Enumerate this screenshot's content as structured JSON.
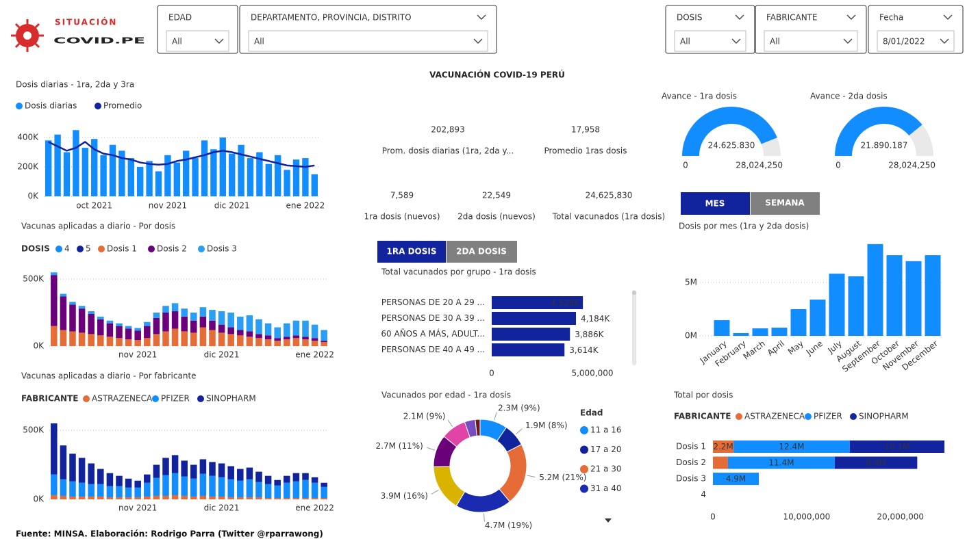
{
  "header": {
    "logo_top": "SITUACIÓN",
    "logo_main": "COVID.PE",
    "title": "VACUNACIÓN COVID-19 PERÚ"
  },
  "filters": [
    {
      "label": "EDAD",
      "value": "All"
    },
    {
      "label": "DEPARTAMENTO, PROVINCIA, DISTRITO",
      "value": "All"
    },
    {
      "label": "DOSIS",
      "value": "All"
    },
    {
      "label": "FABRICANTE",
      "value": "All"
    },
    {
      "label": "Fecha",
      "value": "8/01/2022"
    }
  ],
  "kpis": [
    {
      "value": "202,893",
      "label": "Prom. dosis diarias (1ra, 2da y..."
    },
    {
      "value": "17,958",
      "label": "Promedio 1ras dosis"
    },
    {
      "value": "7,589",
      "label": "1ra dosis (nuevos)"
    },
    {
      "value": "22,549",
      "label": "2da dosis (nuevos)"
    },
    {
      "value": "24,625,830",
      "label": "Total vacunados (1ra dosis)"
    }
  ],
  "toggles": {
    "period": [
      "MES",
      "SEMANA"
    ],
    "dose": [
      "1RA DOSIS",
      "2DA DOSIS"
    ]
  },
  "footer": "Fuente: MINSA. Elaboración: Rodrigo Parra (Twitter @rparrawong)",
  "chart_data": [
    {
      "type": "combo",
      "title": "Dosis diarias - 1ra, 2da y 3ra",
      "categories": [
        null,
        null,
        null,
        null,
        null,
        "oct 2021",
        null,
        null,
        null,
        null,
        null,
        null,
        null,
        "nov 2021",
        null,
        null,
        null,
        null,
        null,
        null,
        "dic 2021",
        null,
        null,
        null,
        null,
        null,
        null,
        null,
        "ene 2022",
        null
      ],
      "series": [
        {
          "name": "Dosis diarias",
          "color": "#118dff",
          "kind": "bar",
          "values": [
            380000,
            420000,
            300000,
            450000,
            330000,
            390000,
            280000,
            350000,
            310000,
            260000,
            200000,
            240000,
            170000,
            280000,
            230000,
            310000,
            260000,
            380000,
            320000,
            400000,
            290000,
            350000,
            260000,
            300000,
            220000,
            280000,
            180000,
            250000,
            260000,
            150000
          ]
        },
        {
          "name": "Promedio",
          "color": "#12239e",
          "kind": "line",
          "values": [
            370000,
            340000,
            310000,
            330000,
            370000,
            320000,
            290000,
            280000,
            260000,
            250000,
            230000,
            220000,
            215000,
            220000,
            240000,
            250000,
            265000,
            280000,
            300000,
            310000,
            300000,
            285000,
            270000,
            255000,
            240000,
            225000,
            210000,
            205000,
            200000,
            210000
          ]
        }
      ],
      "ylim": [
        0,
        500000
      ],
      "yticks": [
        {
          "value": 0,
          "label": "0K"
        },
        {
          "value": 200000,
          "label": "200K"
        },
        {
          "value": 400000,
          "label": "400K"
        }
      ]
    },
    {
      "type": "stacked_bar",
      "title": "Vacunas aplicadas a diario - Por dosis",
      "legend_title": "DOSIS",
      "categories": [
        null,
        null,
        null,
        null,
        null,
        null,
        null,
        null,
        null,
        "nov 2021",
        null,
        null,
        null,
        null,
        null,
        null,
        null,
        null,
        "dic 2021",
        null,
        null,
        null,
        null,
        null,
        null,
        null,
        null,
        null,
        "ene 2022",
        null
      ],
      "series": [
        {
          "name": "4",
          "color": "#118dff",
          "values": [
            0,
            0,
            0,
            0,
            0,
            0,
            0,
            0,
            0,
            0,
            0,
            0,
            0,
            0,
            0,
            0,
            0,
            0,
            0,
            0,
            0,
            0,
            0,
            0,
            0,
            0,
            0,
            0,
            0,
            0
          ]
        },
        {
          "name": "5",
          "color": "#12239e",
          "values": [
            0,
            0,
            0,
            0,
            0,
            0,
            0,
            0,
            0,
            0,
            0,
            0,
            0,
            0,
            0,
            0,
            0,
            0,
            0,
            0,
            0,
            0,
            0,
            0,
            0,
            0,
            0,
            0,
            0,
            0
          ]
        },
        {
          "name": "Dosis 1",
          "color": "#e66c37",
          "values": [
            150000,
            120000,
            110000,
            100000,
            90000,
            80000,
            70000,
            60000,
            50000,
            45000,
            60000,
            90000,
            110000,
            130000,
            110000,
            100000,
            140000,
            120000,
            100000,
            90000,
            80000,
            70000,
            60000,
            50000,
            40000,
            50000,
            60000,
            50000,
            40000,
            30000
          ]
        },
        {
          "name": "Dosis 2",
          "color": "#6b007b",
          "values": [
            380000,
            250000,
            200000,
            180000,
            150000,
            120000,
            100000,
            90000,
            80000,
            70000,
            90000,
            120000,
            140000,
            130000,
            110000,
            90000,
            80000,
            70000,
            60000,
            50000,
            40000,
            40000,
            30000,
            30000,
            20000,
            20000,
            20000,
            20000,
            20000,
            10000
          ]
        },
        {
          "name": "Dosis 3",
          "color": "#2a9df4",
          "values": [
            20000,
            20000,
            20000,
            20000,
            20000,
            20000,
            20000,
            20000,
            20000,
            20000,
            30000,
            40000,
            50000,
            60000,
            60000,
            60000,
            70000,
            80000,
            100000,
            110000,
            100000,
            120000,
            110000,
            90000,
            80000,
            100000,
            110000,
            120000,
            100000,
            80000
          ]
        }
      ],
      "ylim": [
        0,
        600000
      ],
      "yticks": [
        {
          "value": 0,
          "label": "0K"
        },
        {
          "value": 500000,
          "label": "500K"
        }
      ]
    },
    {
      "type": "stacked_bar",
      "title": "Vacunas aplicadas a diario - Por fabricante",
      "legend_title": "FABRICANTE",
      "categories": [
        null,
        null,
        null,
        null,
        null,
        null,
        null,
        null,
        null,
        "nov 2021",
        null,
        null,
        null,
        null,
        null,
        null,
        null,
        null,
        "dic 2021",
        null,
        null,
        null,
        null,
        null,
        null,
        null,
        null,
        null,
        "ene 2022",
        null
      ],
      "series": [
        {
          "name": "ASTRAZENECA",
          "color": "#e66c37",
          "values": [
            30000,
            25000,
            20000,
            20000,
            20000,
            20000,
            15000,
            15000,
            15000,
            15000,
            20000,
            25000,
            25000,
            30000,
            25000,
            20000,
            25000,
            20000,
            20000,
            15000,
            15000,
            15000,
            15000,
            10000,
            10000,
            10000,
            10000,
            10000,
            10000,
            10000
          ]
        },
        {
          "name": "PFIZER",
          "color": "#118dff",
          "values": [
            150000,
            120000,
            110000,
            100000,
            90000,
            90000,
            80000,
            80000,
            70000,
            70000,
            100000,
            130000,
            150000,
            160000,
            140000,
            130000,
            160000,
            150000,
            140000,
            130000,
            120000,
            130000,
            110000,
            100000,
            90000,
            110000,
            120000,
            130000,
            110000,
            80000
          ]
        },
        {
          "name": "SINOPHARM",
          "color": "#12239e",
          "values": [
            370000,
            245000,
            200000,
            180000,
            150000,
            110000,
            95000,
            75000,
            65000,
            50000,
            60000,
            95000,
            125000,
            130000,
            115000,
            100000,
            105000,
            100000,
            100000,
            95000,
            85000,
            85000,
            75000,
            60000,
            40000,
            50000,
            60000,
            50000,
            40000,
            30000
          ]
        }
      ],
      "ylim": [
        0,
        600000
      ],
      "yticks": [
        {
          "value": 0,
          "label": "0K"
        },
        {
          "value": 500000,
          "label": "500K"
        }
      ]
    },
    {
      "type": "gauge",
      "title": "Avance - 1ra dosis",
      "value": 24625830,
      "value_label": "24.625.830",
      "min": 0,
      "max": {
        "value": 28024250,
        "label": "28,024,250"
      },
      "color": "#118dff",
      "track_color": "#e9e9e9"
    },
    {
      "type": "gauge",
      "title": "Avance - 2da dosis",
      "value": 21890187,
      "value_label": "21.890.187",
      "min": 0,
      "max": {
        "value": 28024250,
        "label": "28,024,250"
      },
      "color": "#118dff",
      "track_color": "#e9e9e9"
    },
    {
      "type": "hbar",
      "title": "Total vacunados por grupo - 1ra dosis",
      "categories": [
        "PERSONAS DE 20 A 29 ...",
        "PERSONAS DE 30 A 39 ...",
        "60 AÑOS A MÁS, ADULT...",
        "PERSONAS DE 40 A 49 ..."
      ],
      "values": [
        4528000,
        4184000,
        3886000,
        3614000
      ],
      "value_labels": [
        "4,528K",
        "4,184K",
        "3,886K",
        "3,614K"
      ],
      "color": "#12239e",
      "xlim": [
        0,
        5000000
      ],
      "xticks": [
        0,
        {
          "value": 5000000,
          "label": "5,000,000"
        }
      ]
    },
    {
      "type": "donut",
      "title": "Vacunados por edad - 1ra dosis",
      "legend_title": "Edad",
      "categories": [
        "11 a 16",
        "17 a 20",
        "21 a 30",
        "31 a 40",
        null,
        null,
        null,
        null,
        null
      ],
      "values": [
        2.3,
        1.9,
        5.2,
        4.7,
        3.9,
        2.7,
        2.1,
        0.9,
        0.4
      ],
      "value_labels": [
        "2.3M (9%)",
        "1.9M (8%)",
        "5.2M (21%)",
        "4.7M (19%)",
        "3.9M (16%)",
        "2.7M (11%)",
        "2.1M (9%)",
        null,
        null
      ],
      "colors": [
        "#118dff",
        "#12239e",
        "#e66c37",
        "#1b2bb0",
        "#d9b300",
        "#6b007b",
        "#e044a7",
        "#744ec2",
        "#6b1a1a"
      ]
    },
    {
      "type": "bar",
      "title": "Dosis por mes (1ra y 2da dosis)",
      "categories": [
        "January",
        "February",
        "March",
        "April",
        "May",
        "June",
        "July",
        "August",
        "September",
        "October",
        "November",
        "December"
      ],
      "values": [
        1470000,
        260000,
        700000,
        770000,
        2500000,
        3400000,
        5830000,
        5580000,
        8600000,
        7560000,
        7000000,
        7560000
      ],
      "color": "#118dff",
      "ylim": [
        0,
        9200000
      ],
      "yticks": [
        {
          "value": 0,
          "label": "0M"
        },
        {
          "value": 5000000,
          "label": "5M"
        }
      ]
    },
    {
      "type": "stacked_hbar",
      "title": "Total por dosis",
      "legend_title": "FABRICANTE",
      "categories": [
        "Dosis 1",
        "Dosis 2",
        "Dosis 3",
        "4"
      ],
      "series": [
        {
          "name": "ASTRAZENECA",
          "color": "#e66c37",
          "values": [
            2200000,
            1600000,
            0,
            0
          ],
          "value_labels": [
            "2.2M",
            null,
            null,
            null
          ]
        },
        {
          "name": "PFIZER",
          "color": "#118dff",
          "values": [
            12400000,
            11400000,
            4900000,
            0
          ],
          "value_labels": [
            "12.4M",
            "11.4M",
            "4.9M",
            null
          ]
        },
        {
          "name": "SINOPHARM",
          "color": "#12239e",
          "values": [
            10100000,
            8800000,
            0,
            0
          ],
          "value_labels": [
            "10.1M",
            "8.8M",
            null,
            null
          ]
        }
      ],
      "xlim": [
        0,
        25500000
      ],
      "xticks": [
        0,
        {
          "value": 10000000,
          "label": "10,000,000"
        },
        {
          "value": 20000000,
          "label": "20,000,000"
        }
      ]
    }
  ]
}
